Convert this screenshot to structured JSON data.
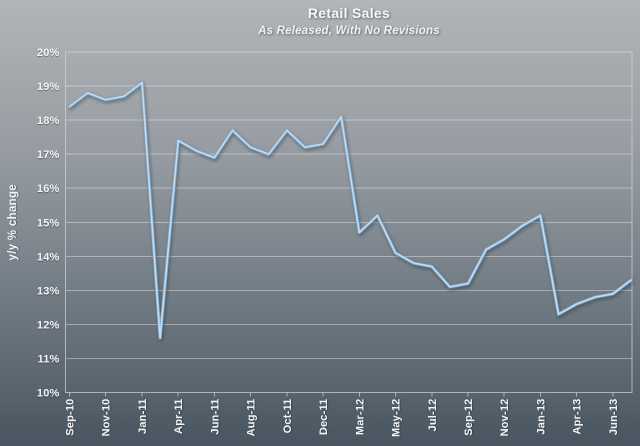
{
  "chart_data": {
    "type": "line",
    "title": "Retail Sales",
    "subtitle": "As Released, With No Revisions",
    "xlabel": "",
    "ylabel": "y/y % change",
    "ylim": [
      10,
      20
    ],
    "ytick_step": 1,
    "y_tick_labels": [
      "20%",
      "19%",
      "18%",
      "17%",
      "16%",
      "15%",
      "14%",
      "13%",
      "12%",
      "11%",
      "10%"
    ],
    "x_tick_labels": [
      "Sep-10",
      "Nov-10",
      "Jan-11",
      "Apr-11",
      "Jun-11",
      "Aug-11",
      "Oct-11",
      "Dec-11",
      "Mar-12",
      "May-12",
      "Jul-12",
      "Sep-12",
      "Nov-12",
      "Jan-13",
      "Apr-13",
      "Jun-13"
    ],
    "x_tick_point_indices": [
      0,
      2,
      4,
      6,
      8,
      10,
      12,
      14,
      16,
      18,
      20,
      22,
      24,
      26,
      28,
      30
    ],
    "grid": "horizontal",
    "legend": "none",
    "series": [
      {
        "name": "retail-sales-yoy-as-released",
        "color": "#a6c8e4",
        "values": [
          18.4,
          18.8,
          18.6,
          18.7,
          19.1,
          11.6,
          17.4,
          17.1,
          16.9,
          17.7,
          17.2,
          17.0,
          17.7,
          17.2,
          17.3,
          18.1,
          14.7,
          15.2,
          14.1,
          13.8,
          13.7,
          13.1,
          13.2,
          14.2,
          14.5,
          14.9,
          15.2,
          12.3,
          12.6,
          12.8,
          12.9,
          13.3
        ]
      }
    ]
  },
  "style": {
    "bg_top": "#b2b5b8",
    "bg_bottom": "#495560",
    "text_color": "#f3f5f6",
    "grid_color": "#ffffff",
    "border_color": "#d2d6da",
    "line_halo_color": "#7ba6ca",
    "line_core_color": "#c3dcf0"
  }
}
